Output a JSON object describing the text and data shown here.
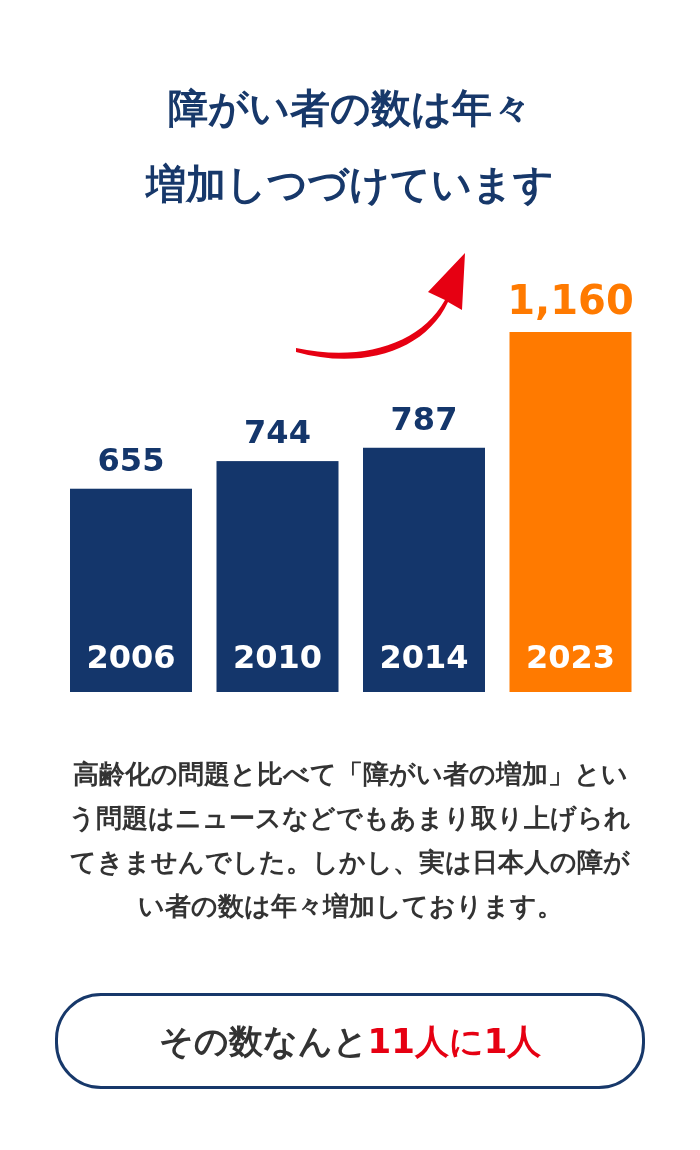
{
  "chart_data": {
    "type": "bar",
    "title": "障がい者の数は年々",
    "subtitle": "増加しつづけています",
    "categories": [
      "2006",
      "2010",
      "2014",
      "2023"
    ],
    "values": [
      655,
      744,
      787,
      1160
    ],
    "value_labels": [
      "655",
      "744",
      "787",
      "1,160"
    ],
    "colors": [
      "#14366b",
      "#14366b",
      "#14366b",
      "#ff7a00"
    ],
    "annotations": [
      "高齢化の問題と比べて「障がい者の増加」という問題はニュースなどでもあまり取り上げられてきませんでした。しかし、実は日本人の障がい者の数は年々増加しております。",
      "その数なんと",
      "11人に1人"
    ]
  }
}
